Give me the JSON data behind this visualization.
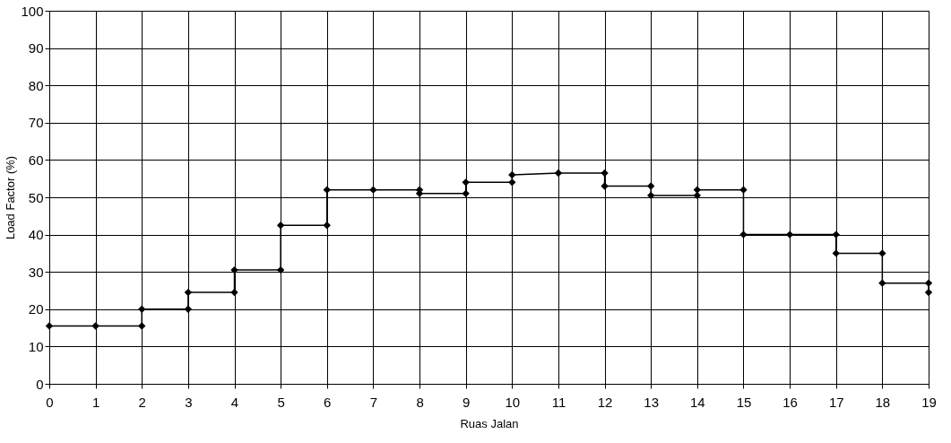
{
  "chart_data": {
    "type": "line",
    "xlabel": "Ruas Jalan",
    "ylabel": "Load Factor (%)",
    "x": [
      0,
      1,
      2,
      2,
      3,
      3,
      4,
      4,
      5,
      5,
      6,
      6,
      7,
      8,
      8,
      9,
      9,
      10,
      10,
      11,
      12,
      12,
      13,
      13,
      14,
      14,
      15,
      15,
      16,
      17,
      17,
      18,
      18,
      19,
      19
    ],
    "series": [
      {
        "color": "#000000",
        "values": [
          15.5,
          15.5,
          15.5,
          20,
          20,
          24.5,
          24.5,
          30.5,
          30.5,
          42.5,
          42.5,
          52,
          52,
          52,
          51,
          51,
          54,
          54,
          56,
          56.5,
          56.5,
          53,
          53,
          50.5,
          50.5,
          52,
          52,
          40,
          40,
          40,
          35,
          35,
          27,
          27,
          24.5
        ]
      }
    ],
    "xlim": [
      0,
      19
    ],
    "xticks": [
      0,
      1,
      2,
      3,
      4,
      5,
      6,
      7,
      8,
      9,
      10,
      11,
      12,
      13,
      14,
      15,
      16,
      17,
      18,
      19
    ],
    "ylim": [
      0,
      100
    ],
    "yticks": [
      0,
      10,
      20,
      30,
      40,
      50,
      60,
      70,
      80,
      90,
      100
    ],
    "grid": true,
    "marker": "diamond",
    "line_style": "solid"
  }
}
